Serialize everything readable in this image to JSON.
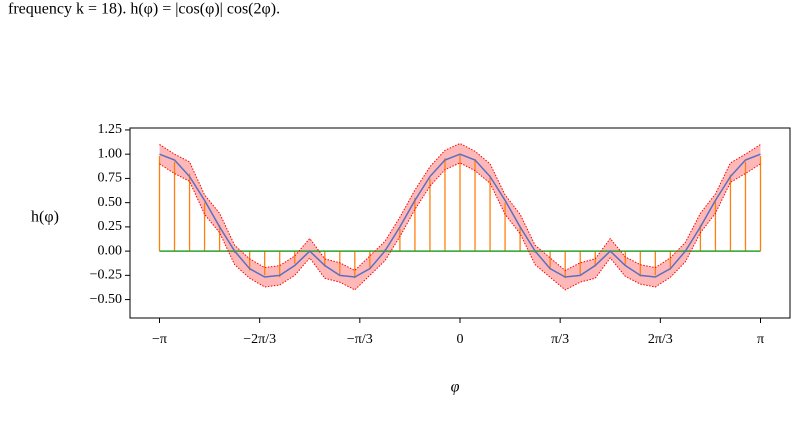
{
  "caption": "frequency k = 18). h(φ) = |cos(φ)| cos(2φ).",
  "chart_data": {
    "type": "stem",
    "xlabel": "φ",
    "ylabel": "h(φ)",
    "x": [
      -3.1416,
      -2.9845,
      -2.8274,
      -2.6704,
      -2.5133,
      -2.3562,
      -2.1991,
      -2.042,
      -1.885,
      -1.7279,
      -1.5708,
      -1.4137,
      -1.2566,
      -1.0996,
      -0.9425,
      -0.7854,
      -0.6283,
      -0.4712,
      -0.3142,
      -0.1571,
      0,
      0.1571,
      0.3142,
      0.4712,
      0.6283,
      0.7854,
      0.9425,
      1.0996,
      1.2566,
      1.4137,
      1.5708,
      1.7279,
      1.885,
      2.042,
      2.1991,
      2.3562,
      2.5133,
      2.6704,
      2.8274,
      2.9845,
      3.1416
    ],
    "curve": {
      "color": "#5a6fc0",
      "values": [
        1,
        0.9394,
        0.7694,
        0.5237,
        0.25,
        0,
        -0.1816,
        -0.2669,
        -0.25,
        -0.1488,
        0,
        -0.1488,
        -0.25,
        -0.2669,
        -0.1816,
        0,
        0.25,
        0.5237,
        0.7694,
        0.9394,
        1,
        0.9394,
        0.7694,
        0.5237,
        0.25,
        0,
        -0.1816,
        -0.2669,
        -0.25,
        -0.1488,
        0,
        -0.1488,
        -0.25,
        -0.2669,
        -0.1816,
        0,
        0.25,
        0.5237,
        0.7694,
        0.9394,
        1
      ]
    },
    "stems": {
      "color": "#ff7f0e",
      "baseline_color": "#2ca02c",
      "values": [
        0.98,
        0.92,
        0.8,
        0.5,
        0.27,
        -0.02,
        -0.2,
        -0.25,
        -0.27,
        -0.13,
        0.01,
        -0.16,
        -0.24,
        -0.28,
        -0.17,
        0.02,
        0.23,
        0.55,
        0.75,
        0.96,
        0.99,
        0.95,
        0.78,
        0.5,
        0.26,
        -0.02,
        -0.19,
        -0.28,
        -0.24,
        -0.16,
        0.01,
        -0.14,
        -0.26,
        -0.25,
        -0.19,
        0.01,
        0.27,
        0.51,
        0.79,
        0.92,
        0.98
      ]
    },
    "band": {
      "color": "#ff0000",
      "upper": [
        1.1,
        1.0,
        0.92,
        0.58,
        0.39,
        0.06,
        -0.08,
        -0.17,
        -0.15,
        -0.05,
        0.13,
        -0.08,
        -0.12,
        -0.2,
        -0.05,
        0.1,
        0.35,
        0.63,
        0.87,
        1.04,
        1.11,
        1.03,
        0.9,
        0.58,
        0.38,
        0.06,
        -0.07,
        -0.2,
        -0.12,
        -0.08,
        0.13,
        -0.06,
        -0.14,
        -0.17,
        -0.07,
        0.09,
        0.39,
        0.59,
        0.91,
        1.0,
        1.1
      ],
      "lower": [
        0.9,
        0.8,
        0.72,
        0.38,
        0.19,
        -0.14,
        -0.28,
        -0.37,
        -0.35,
        -0.25,
        -0.07,
        -0.28,
        -0.32,
        -0.4,
        -0.25,
        -0.1,
        0.15,
        0.43,
        0.67,
        0.84,
        0.91,
        0.83,
        0.7,
        0.38,
        0.18,
        -0.14,
        -0.27,
        -0.4,
        -0.32,
        -0.28,
        -0.07,
        -0.26,
        -0.34,
        -0.37,
        -0.27,
        -0.11,
        0.19,
        0.39,
        0.71,
        0.8,
        0.9
      ]
    },
    "xlim": [
      -3.45,
      3.45
    ],
    "ylim": [
      -0.69,
      1.27
    ],
    "xticks": [
      {
        "value": -3.1416,
        "label": "−π"
      },
      {
        "value": -2.0944,
        "label": "−2π/3"
      },
      {
        "value": -1.0472,
        "label": "−π/3"
      },
      0,
      {
        "value": 1.0472,
        "label": "π/3"
      },
      {
        "value": 2.0944,
        "label": "2π/3"
      },
      {
        "value": 3.1416,
        "label": "π"
      }
    ],
    "yticks": [
      {
        "value": -0.5,
        "label": "−0.50"
      },
      {
        "value": -0.25,
        "label": "−0.25"
      },
      {
        "value": 0,
        "label": "0.00"
      },
      {
        "value": 0.25,
        "label": "0.25"
      },
      {
        "value": 0.5,
        "label": "0.50"
      },
      {
        "value": 0.75,
        "label": "0.75"
      },
      {
        "value": 1,
        "label": "1.00"
      },
      {
        "value": 1.25,
        "label": "1.25"
      }
    ]
  }
}
